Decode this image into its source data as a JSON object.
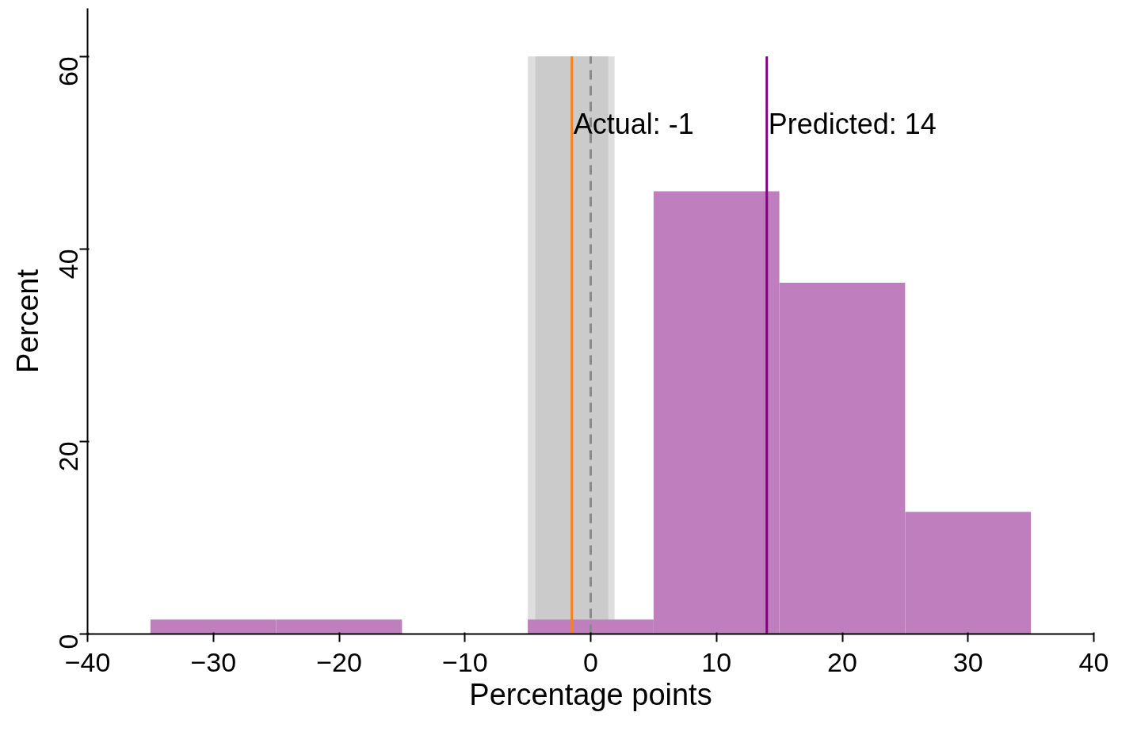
{
  "chart_data": {
    "type": "histogram",
    "xlabel": "Percentage points",
    "ylabel": "Percent",
    "bins": [
      -35,
      -25,
      -15,
      -5,
      5,
      15,
      25,
      35
    ],
    "values": [
      1.5,
      1.5,
      0,
      1.5,
      46,
      36.5,
      12.7
    ],
    "color": "#bf7fbf",
    "xlim": [
      -40,
      40
    ],
    "xticks": [
      -40,
      -30,
      -20,
      -10,
      0,
      10,
      20,
      30,
      40
    ],
    "ylim": [
      0,
      65
    ],
    "yticks": [
      0,
      20,
      40,
      60
    ],
    "grid": false,
    "bands": [
      {
        "axis": "x",
        "from": -5,
        "to": 1.9,
        "color": "#dedede"
      },
      {
        "axis": "x",
        "from": -4.4,
        "to": 1.4,
        "color": "#cbcbcb"
      }
    ],
    "ref_lines": [
      {
        "axis": "x",
        "value": -1.5,
        "label": "Actual: -1",
        "color": "#f58220",
        "line_style": "solid"
      },
      {
        "axis": "x",
        "value": 0,
        "color": "#8a8a8a",
        "line_style": "dashed"
      },
      {
        "axis": "x",
        "value": 14,
        "label": "Predicted: 14",
        "color": "#800080",
        "line_style": "solid"
      }
    ]
  }
}
